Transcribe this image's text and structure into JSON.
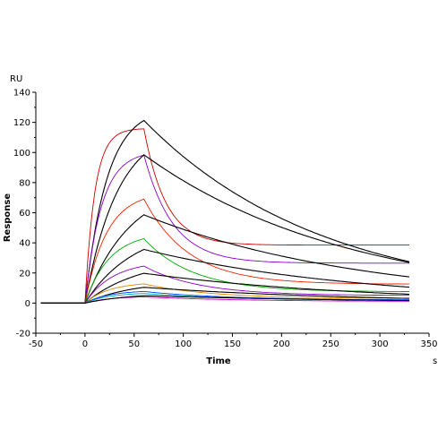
{
  "chart_data": {
    "type": "line",
    "title": "",
    "xlabel": "Time",
    "ylabel": "Response",
    "x_unit": "s",
    "y_unit": "RU",
    "xlim": [
      -50,
      350
    ],
    "ylim": [
      -20,
      140
    ],
    "x_ticks": [
      -50,
      0,
      50,
      100,
      150,
      200,
      250,
      300,
      350
    ],
    "y_ticks": [
      -20,
      0,
      20,
      40,
      60,
      80,
      100,
      120,
      140
    ],
    "x_tick_labels": [
      "-50",
      "0",
      "50",
      "100",
      "150",
      "200",
      "250",
      "300",
      "350"
    ],
    "y_tick_labels": [
      "-20",
      "0",
      "20",
      "40",
      "60",
      "80",
      "100",
      "120",
      "140"
    ],
    "grid": false,
    "association_start": 0,
    "dissociation_start": 60,
    "end_time": 330,
    "series": [
      {
        "color": "#cc0000",
        "kind": "fit",
        "kon": 0.1,
        "plateau": 116,
        "koff": 0.045,
        "baseline": 38.5
      },
      {
        "color": "#000000",
        "kind": "data",
        "kon": 0.045,
        "plateau": 130,
        "koff": 0.0055,
        "baseline": 0
      },
      {
        "color": "#8800cc",
        "kind": "fit",
        "kon": 0.06,
        "plateau": 101,
        "koff": 0.034,
        "baseline": 26.5
      },
      {
        "color": "#000000",
        "kind": "data",
        "kon": 0.03,
        "plateau": 118,
        "koff": 0.0048,
        "baseline": 0
      },
      {
        "color": "#ee2200",
        "kind": "fit",
        "kon": 0.045,
        "plateau": 74,
        "koff": 0.022,
        "baseline": 12.5
      },
      {
        "color": "#000000",
        "kind": "data",
        "kon": 0.022,
        "plateau": 80,
        "koff": 0.0045,
        "baseline": 0
      },
      {
        "color": "#00aa00",
        "kind": "fit",
        "kon": 0.04,
        "plateau": 47,
        "koff": 0.02,
        "baseline": 7.5
      },
      {
        "color": "#000000",
        "kind": "data",
        "kon": 0.02,
        "plateau": 51,
        "koff": 0.0045,
        "baseline": 0
      },
      {
        "color": "#8800cc",
        "kind": "fit",
        "kon": 0.035,
        "plateau": 28,
        "koff": 0.018,
        "baseline": 5
      },
      {
        "color": "#000000",
        "kind": "data",
        "kon": 0.018,
        "plateau": 30,
        "koff": 0.0045,
        "baseline": 0
      },
      {
        "color": "#dd8800",
        "kind": "fit",
        "kon": 0.04,
        "plateau": 14,
        "koff": 0.015,
        "baseline": 3
      },
      {
        "color": "#000000",
        "kind": "data",
        "kon": 0.02,
        "plateau": 15,
        "koff": 0.0045,
        "baseline": 0
      },
      {
        "color": "#0044ff",
        "kind": "fit",
        "kon": 0.04,
        "plateau": 8.5,
        "koff": 0.012,
        "baseline": 2
      },
      {
        "color": "#00aaaa",
        "kind": "fit",
        "kon": 0.04,
        "plateau": 7,
        "koff": 0.01,
        "baseline": 1.5
      },
      {
        "color": "#cc00cc",
        "kind": "fit",
        "kon": 0.04,
        "plateau": 4.5,
        "koff": 0.01,
        "baseline": 1
      },
      {
        "color": "#000000",
        "kind": "data",
        "kon": 0.02,
        "plateau": 7,
        "koff": 0.004,
        "baseline": 0
      }
    ]
  }
}
